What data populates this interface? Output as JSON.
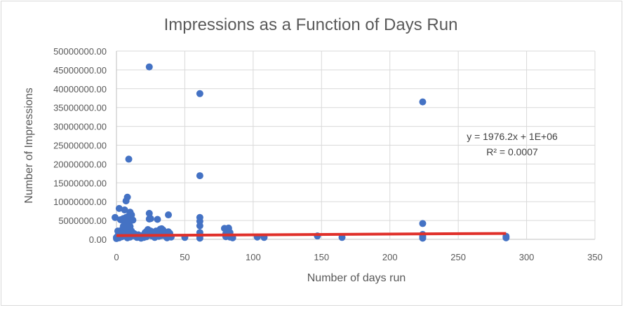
{
  "chart_data": {
    "type": "scatter",
    "title": "Impressions as a Function of Days Run",
    "xlabel": "Number of days run",
    "ylabel": "Number of Impressions",
    "xlim": [
      0,
      350
    ],
    "ylim": [
      0,
      50000000
    ],
    "x_ticks": [
      "0",
      "50",
      "100",
      "150",
      "200",
      "250",
      "300",
      "350"
    ],
    "y_ticks": [
      "0.00",
      "5000000.00",
      "10000000.00",
      "15000000.00",
      "20000000.00",
      "25000000.00",
      "30000000.00",
      "35000000.00",
      "40000000.00",
      "45000000.00",
      "50000000.00"
    ],
    "grid": true,
    "marker_color": "#4472C4",
    "trendline": {
      "color": "#E0302A",
      "slope": 1976.2,
      "intercept": 1000000,
      "x_range": [
        0,
        285
      ],
      "equation": "y = 1976.2x + 1E+06",
      "r2": "R² = 0.0007"
    },
    "series": [
      {
        "points": [
          [
            -1,
            5800000
          ],
          [
            0,
            200000
          ],
          [
            0,
            500000
          ],
          [
            1,
            900000
          ],
          [
            1,
            2200000
          ],
          [
            2,
            8200000
          ],
          [
            2,
            400000
          ],
          [
            3,
            5200000
          ],
          [
            3,
            1500000
          ],
          [
            4,
            2500000
          ],
          [
            4,
            700000
          ],
          [
            5,
            5500000
          ],
          [
            5,
            3500000
          ],
          [
            5,
            1200000
          ],
          [
            6,
            7800000
          ],
          [
            6,
            4500000
          ],
          [
            6,
            2000000
          ],
          [
            7,
            10200000
          ],
          [
            7,
            5800000
          ],
          [
            7,
            3000000
          ],
          [
            7,
            800000
          ],
          [
            8,
            11200000
          ],
          [
            8,
            5000000
          ],
          [
            8,
            2600000
          ],
          [
            8,
            400000
          ],
          [
            9,
            21300000
          ],
          [
            9,
            6200000
          ],
          [
            9,
            4200000
          ],
          [
            9,
            1800000
          ],
          [
            10,
            7200000
          ],
          [
            10,
            5600000
          ],
          [
            10,
            3400000
          ],
          [
            10,
            600000
          ],
          [
            11,
            6500000
          ],
          [
            11,
            5000000
          ],
          [
            11,
            2200000
          ],
          [
            12,
            5100000
          ],
          [
            12,
            1000000
          ],
          [
            13,
            1500000
          ],
          [
            14,
            800000
          ],
          [
            15,
            500000
          ],
          [
            16,
            1200000
          ],
          [
            17,
            600000
          ],
          [
            18,
            300000
          ],
          [
            19,
            1000000
          ],
          [
            20,
            500000
          ],
          [
            21,
            1800000
          ],
          [
            22,
            2100000
          ],
          [
            22,
            700000
          ],
          [
            23,
            2600000
          ],
          [
            24,
            45800000
          ],
          [
            24,
            6900000
          ],
          [
            24,
            5400000
          ],
          [
            25,
            5500000
          ],
          [
            25,
            2200000
          ],
          [
            26,
            1600000
          ],
          [
            26,
            900000
          ],
          [
            27,
            1300000
          ],
          [
            28,
            500000
          ],
          [
            29,
            2200000
          ],
          [
            30,
            5300000
          ],
          [
            30,
            1900000
          ],
          [
            31,
            800000
          ],
          [
            32,
            2700000
          ],
          [
            33,
            2800000
          ],
          [
            33,
            1000000
          ],
          [
            34,
            2500000
          ],
          [
            35,
            1400000
          ],
          [
            36,
            800000
          ],
          [
            37,
            400000
          ],
          [
            38,
            6500000
          ],
          [
            38,
            2000000
          ],
          [
            39,
            1600000
          ],
          [
            40,
            600000
          ],
          [
            50,
            500000
          ],
          [
            61,
            38700000
          ],
          [
            61,
            16900000
          ],
          [
            61,
            5800000
          ],
          [
            61,
            4800000
          ],
          [
            61,
            3600000
          ],
          [
            61,
            1800000
          ],
          [
            61,
            800000
          ],
          [
            61,
            300000
          ],
          [
            79,
            2900000
          ],
          [
            80,
            1500000
          ],
          [
            80,
            700000
          ],
          [
            81,
            2100000
          ],
          [
            82,
            2800000
          ],
          [
            82,
            3000000
          ],
          [
            83,
            1800000
          ],
          [
            83,
            600000
          ],
          [
            84,
            700000
          ],
          [
            85,
            400000
          ],
          [
            103,
            600000
          ],
          [
            108,
            500000
          ],
          [
            147,
            900000
          ],
          [
            165,
            500000
          ],
          [
            224,
            36500000
          ],
          [
            224,
            4200000
          ],
          [
            224,
            1300000
          ],
          [
            224,
            700000
          ],
          [
            224,
            300000
          ],
          [
            285,
            800000
          ],
          [
            285,
            400000
          ]
        ]
      }
    ]
  }
}
